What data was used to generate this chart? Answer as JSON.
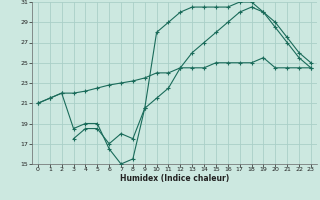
{
  "title": "",
  "xlabel": "Humidex (Indice chaleur)",
  "bg_color": "#cce8e0",
  "grid_color": "#aacfc8",
  "line_color": "#1a6b5a",
  "xlim": [
    -0.5,
    23.5
  ],
  "ylim": [
    15,
    31
  ],
  "xticks": [
    0,
    1,
    2,
    3,
    4,
    5,
    6,
    7,
    8,
    9,
    10,
    11,
    12,
    13,
    14,
    15,
    16,
    17,
    18,
    19,
    20,
    21,
    22,
    23
  ],
  "yticks": [
    15,
    17,
    19,
    21,
    23,
    25,
    27,
    29,
    31
  ],
  "line1_x": [
    0,
    1,
    2,
    3,
    4,
    5,
    6,
    7,
    8,
    9,
    10,
    11,
    12,
    13,
    14,
    15,
    16,
    17,
    18,
    19,
    20,
    21,
    22,
    23
  ],
  "line1_y": [
    21,
    21.5,
    22,
    22,
    22.2,
    22.5,
    22.8,
    23,
    23.2,
    23.5,
    24,
    24,
    24.5,
    24.5,
    24.5,
    25,
    25,
    25,
    25,
    25.5,
    24.5,
    24.5,
    24.5,
    24.5
  ],
  "line2_x": [
    0,
    1,
    2,
    3,
    4,
    5,
    6,
    7,
    8,
    9,
    10,
    11,
    12,
    13,
    14,
    15,
    16,
    17,
    18,
    19,
    20,
    21,
    22,
    23
  ],
  "line2_y": [
    21,
    21.5,
    22,
    18.5,
    19,
    19,
    16.5,
    15,
    15.5,
    20.5,
    28,
    29,
    30,
    30.5,
    30.5,
    30.5,
    30.5,
    31,
    31,
    30,
    29,
    27.5,
    26,
    25
  ],
  "line3_x": [
    3,
    4,
    5,
    6,
    7,
    8,
    9,
    10,
    11,
    12,
    13,
    14,
    15,
    16,
    17,
    18,
    19,
    20,
    21,
    22,
    23
  ],
  "line3_y": [
    17.5,
    18.5,
    18.5,
    17,
    18,
    17.5,
    20.5,
    21.5,
    22.5,
    24.5,
    26,
    27,
    28,
    29,
    30,
    30.5,
    30,
    28.5,
    27,
    25.5,
    24.5
  ]
}
